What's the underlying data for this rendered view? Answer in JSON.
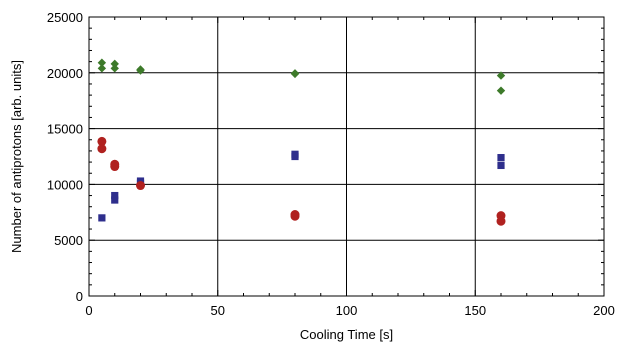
{
  "chart_data": {
    "type": "scatter",
    "title": "",
    "xlabel": "Cooling Time [s]",
    "ylabel": "Number of antiprotons [arb. units]",
    "xlim": [
      0,
      200
    ],
    "ylim": [
      0,
      25000
    ],
    "xticks": [
      0,
      50,
      100,
      150,
      200
    ],
    "yticks": [
      0,
      5000,
      10000,
      15000,
      20000,
      25000
    ],
    "grid": true,
    "legend": "none",
    "series": [
      {
        "marker": "diamond",
        "color": "#3d7a2a",
        "points": [
          [
            5,
            20900
          ],
          [
            5,
            20400
          ],
          [
            10,
            20800
          ],
          [
            10,
            20400
          ],
          [
            20,
            20300
          ],
          [
            20,
            20200
          ],
          [
            80,
            19950
          ],
          [
            80,
            19900
          ],
          [
            160,
            19750
          ],
          [
            160,
            18400
          ]
        ]
      },
      {
        "marker": "square",
        "color": "#2e2e8c",
        "points": [
          [
            5,
            7000
          ],
          [
            10,
            9000
          ],
          [
            10,
            8600
          ],
          [
            20,
            10300
          ],
          [
            20,
            10100
          ],
          [
            80,
            12700
          ],
          [
            80,
            12500
          ],
          [
            160,
            12400
          ],
          [
            160,
            11700
          ]
        ]
      },
      {
        "marker": "circle",
        "color": "#b0211f",
        "points": [
          [
            5,
            13850
          ],
          [
            5,
            13200
          ],
          [
            10,
            11800
          ],
          [
            10,
            11600
          ],
          [
            20,
            9900
          ],
          [
            80,
            7300
          ],
          [
            80,
            7150
          ],
          [
            160,
            7200
          ],
          [
            160,
            6700
          ]
        ]
      }
    ]
  }
}
